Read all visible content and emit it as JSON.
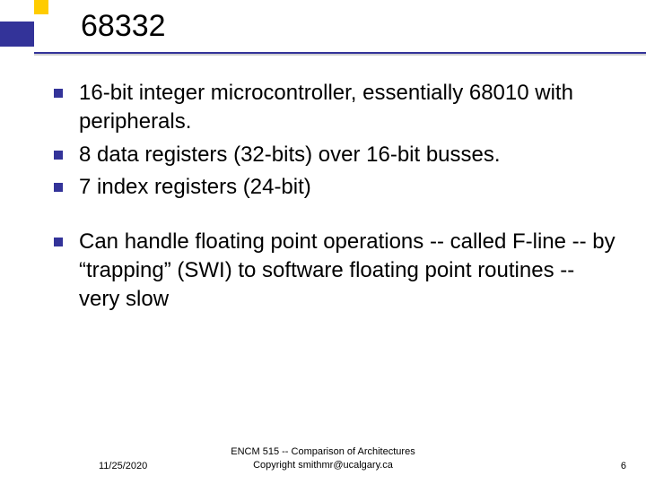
{
  "colors": {
    "accent_yellow": "#ffcc00",
    "accent_blue": "#333399",
    "background": "#ffffff",
    "text": "#000000"
  },
  "title": "68332",
  "bullets": [
    {
      "text": "16-bit integer microcontroller, essentially 68010 with peripherals."
    },
    {
      "text": "8 data registers (32-bits) over 16-bit busses."
    },
    {
      "text": "7 index registers (24-bit)"
    },
    {
      "text": "Can handle floating point operations -- called F-line -- by “trapping” (SWI) to software floating point routines -- very slow",
      "gap_before": true
    }
  ],
  "footer": {
    "date": "11/25/2020",
    "center_line1": "ENCM 515 -- Comparison of Architectures",
    "center_line2": "Copyright smithmr@ucalgary.ca",
    "page": "6"
  },
  "typography": {
    "title_fontsize": 34,
    "body_fontsize": 24,
    "footer_fontsize": 11
  }
}
